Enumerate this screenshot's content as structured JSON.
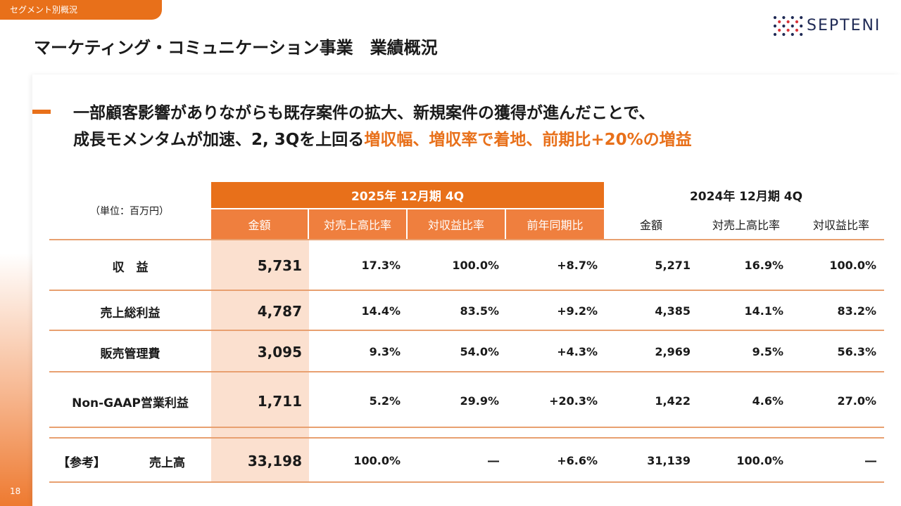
{
  "section_tab": "セグメント別概況",
  "page_title": "マーケティング・コミュニケーション事業　業績概況",
  "logo_text": "SEPTENI",
  "headline": {
    "line1": "一部顧客影響がありながらも既存案件の拡大、新規案件の獲得が進んだことで、",
    "line2_normal": "成長モメンタムが加速、2, 3Qを上回る",
    "line2_orange": "増収幅、増収率で着地、前期比+20%の増益"
  },
  "unit_label": "（単位：百万円）",
  "table": {
    "group_2025": "2025年 12月期 4Q",
    "group_2024": "2024年 12月期 4Q",
    "columns_2025": [
      "金額",
      "対売上高比率",
      "対収益比率",
      "前年同期比"
    ],
    "columns_2024": [
      "金額",
      "対売上高比率",
      "対収益比率"
    ],
    "rows": [
      {
        "label": "収　益",
        "cells": [
          "5,731",
          "17.3%",
          "100.0%",
          "+8.7%",
          "5,271",
          "16.9%",
          "100.0%"
        ]
      },
      {
        "label": "売上総利益",
        "cells": [
          "4,787",
          "14.4%",
          "83.5%",
          "+9.2%",
          "4,385",
          "14.1%",
          "83.2%"
        ]
      },
      {
        "label": "販売管理費",
        "cells": [
          "3,095",
          "9.3%",
          "54.0%",
          "+4.3%",
          "2,969",
          "9.5%",
          "56.3%"
        ]
      },
      {
        "label": "Non-GAAP営業利益",
        "cells": [
          "1,711",
          "5.2%",
          "29.9%",
          "+20.3%",
          "1,422",
          "4.6%",
          "27.0%"
        ]
      }
    ],
    "reference_row": {
      "tag": "【参考】",
      "label": "売上高",
      "cells": [
        "33,198",
        "100.0%",
        "―",
        "+6.6%",
        "31,139",
        "100.0%",
        "―"
      ]
    }
  },
  "page_number": "18",
  "colors": {
    "accent": "#e8701a",
    "highlight": "#fbe0cf",
    "logo_navy": "#1f2a55",
    "logo_red": "#d9333a"
  }
}
